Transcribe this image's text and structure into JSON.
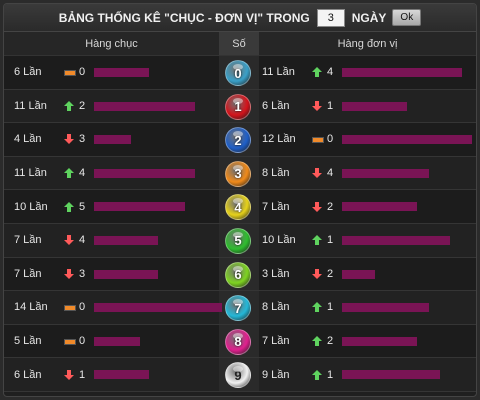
{
  "header": {
    "title_prefix": "BẢNG THỐNG KÊ \"CHỤC - ĐƠN VỊ\" TRONG",
    "days_value": "3",
    "days_suffix": "NGÀY",
    "ok_label": "Ok"
  },
  "columns": {
    "left": "Hàng chục",
    "mid": "Số",
    "right": "Hàng đơn vị"
  },
  "bar_color": "#7a1455",
  "trend_colors": {
    "up": "#5fd35f",
    "down": "#ff5a5a",
    "same": "#f08a2a"
  },
  "rows": [
    {
      "digit": "0",
      "ball_color": "#3aa0c8",
      "left_count": "6 Lần",
      "left_trend": "same",
      "left_delta": "0",
      "left_fill": 0.43,
      "right_count": "11 Lần",
      "right_trend": "up",
      "right_delta": "4",
      "right_fill": 0.92
    },
    {
      "digit": "1",
      "ball_color": "#d4141c",
      "left_count": "11 Lần",
      "left_trend": "up",
      "left_delta": "2",
      "left_fill": 0.79,
      "right_count": "6 Lần",
      "right_trend": "down",
      "right_delta": "1",
      "right_fill": 0.5
    },
    {
      "digit": "2",
      "ball_color": "#1f5fc8",
      "left_count": "4 Lần",
      "left_trend": "down",
      "left_delta": "3",
      "left_fill": 0.29,
      "right_count": "12 Lần",
      "right_trend": "same",
      "right_delta": "0",
      "right_fill": 1.0
    },
    {
      "digit": "3",
      "ball_color": "#f08a1a",
      "left_count": "11 Lần",
      "left_trend": "up",
      "left_delta": "4",
      "left_fill": 0.79,
      "right_count": "8 Lần",
      "right_trend": "down",
      "right_delta": "4",
      "right_fill": 0.67
    },
    {
      "digit": "4",
      "ball_color": "#e6d21a",
      "left_count": "10 Lần",
      "left_trend": "up",
      "left_delta": "5",
      "left_fill": 0.71,
      "right_count": "7 Lần",
      "right_trend": "down",
      "right_delta": "2",
      "right_fill": 0.58
    },
    {
      "digit": "5",
      "ball_color": "#2ebd2e",
      "left_count": "7 Lần",
      "left_trend": "down",
      "left_delta": "4",
      "left_fill": 0.5,
      "right_count": "10 Lần",
      "right_trend": "up",
      "right_delta": "1",
      "right_fill": 0.83
    },
    {
      "digit": "6",
      "ball_color": "#7ed321",
      "left_count": "7 Lần",
      "left_trend": "down",
      "left_delta": "3",
      "left_fill": 0.5,
      "right_count": "3 Lần",
      "right_trend": "down",
      "right_delta": "2",
      "right_fill": 0.25
    },
    {
      "digit": "7",
      "ball_color": "#24b8d8",
      "left_count": "14 Lần",
      "left_trend": "same",
      "left_delta": "0",
      "left_fill": 1.0,
      "right_count": "8 Lần",
      "right_trend": "up",
      "right_delta": "1",
      "right_fill": 0.67
    },
    {
      "digit": "8",
      "ball_color": "#e0208e",
      "left_count": "5 Lần",
      "left_trend": "same",
      "left_delta": "0",
      "left_fill": 0.36,
      "right_count": "7 Lần",
      "right_trend": "up",
      "right_delta": "2",
      "right_fill": 0.58
    },
    {
      "digit": "9",
      "ball_color": "#f2f2f2",
      "left_count": "6 Lần",
      "left_trend": "down",
      "left_delta": "1",
      "left_fill": 0.43,
      "right_count": "9 Lần",
      "right_trend": "up",
      "right_delta": "1",
      "right_fill": 0.75
    }
  ]
}
